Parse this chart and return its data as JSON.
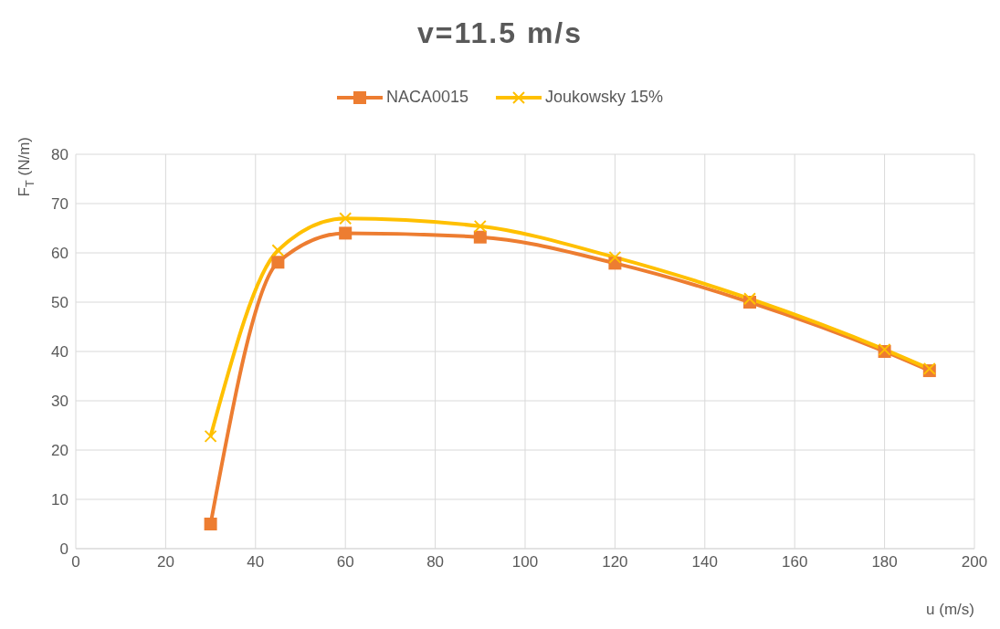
{
  "chart_data": {
    "type": "line",
    "title": "v=11.5 m/s",
    "xlabel": "u (m/s)",
    "ylabel": "F$_{T}$ (N/m)",
    "x": [
      30,
      45,
      60,
      90,
      120,
      150,
      180,
      190
    ],
    "series": [
      {
        "name": "NACA0015",
        "color": "#ed7d31",
        "marker": "square",
        "values": [
          5,
          58.1,
          64,
          63.2,
          57.9,
          50,
          40,
          36.1
        ]
      },
      {
        "name": "Joukowsky 15%",
        "color": "#ffc000",
        "marker": "cross",
        "values": [
          22.8,
          60.5,
          67,
          65.4,
          59.1,
          50.7,
          40.4,
          36.5
        ]
      }
    ],
    "xlim": [
      0,
      200
    ],
    "xticks": [
      0,
      20,
      40,
      60,
      80,
      100,
      120,
      140,
      160,
      180,
      200
    ],
    "ylim": [
      0,
      80
    ],
    "yticks": [
      0,
      10,
      20,
      30,
      40,
      50,
      60,
      70,
      80
    ],
    "grid": true,
    "legend": "top",
    "line_style": "solid"
  }
}
